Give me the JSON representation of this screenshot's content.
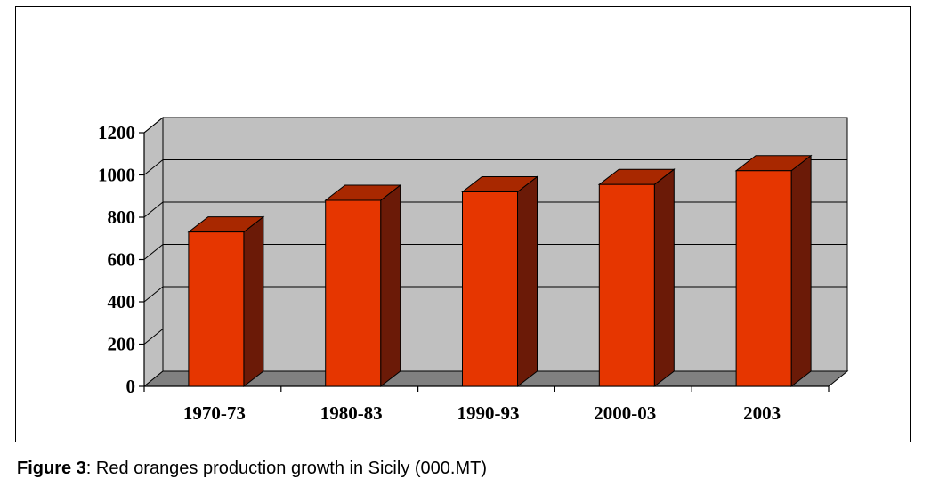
{
  "caption": {
    "label": "Figure 3",
    "text": ": Red oranges production growth in Sicily (000.MT)"
  },
  "chart_data": {
    "type": "bar",
    "style": "3d-column",
    "title": "",
    "xlabel": "",
    "ylabel": "",
    "categories": [
      "1970-73",
      "1980-83",
      "1990-93",
      "2000-03",
      "2003"
    ],
    "series": [
      {
        "values": [
          730,
          880,
          920,
          955,
          1020
        ]
      }
    ],
    "ylim": [
      0,
      1200
    ],
    "yticks": [
      0,
      200,
      400,
      600,
      800,
      1000,
      1200
    ],
    "grid": true,
    "legend": "none",
    "colors": {
      "bar_front": "#e63600",
      "bar_top": "#a82800",
      "bar_side": "#6b1a07",
      "back_wall": "#c0c0c0",
      "floor": "#808080"
    }
  }
}
